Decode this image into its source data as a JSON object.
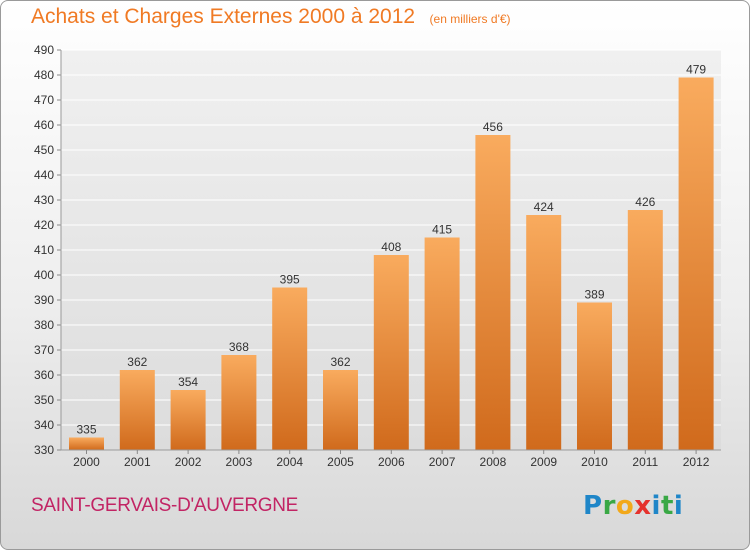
{
  "title": {
    "main": "Achats et Charges Externes 2000 à 2012",
    "unit": "(en milliers d'€)"
  },
  "footer": {
    "town": "SAINT-GERVAIS-D'AUVERGNE",
    "logo": "Proxiti"
  },
  "colors": {
    "title": "#f07a24",
    "town": "#c22464",
    "bar_light": "#f8a85a",
    "bar_dark": "#d5701f",
    "grid": "#ffffff"
  },
  "chart_data": {
    "type": "bar",
    "title": "Achats et Charges Externes 2000 à 2012",
    "subtitle": "(en milliers d'€)",
    "xlabel": "",
    "ylabel": "",
    "categories": [
      "2000",
      "2001",
      "2002",
      "2003",
      "2004",
      "2005",
      "2006",
      "2007",
      "2008",
      "2009",
      "2010",
      "2011",
      "2012"
    ],
    "values": [
      335,
      362,
      354,
      368,
      395,
      362,
      408,
      415,
      456,
      424,
      389,
      426,
      479
    ],
    "value_labels": [
      "335",
      "362",
      "354",
      "368",
      "395",
      "362",
      "408",
      "415",
      "456",
      "424",
      "389",
      "426",
      "479"
    ],
    "ylim": [
      330,
      490
    ],
    "yticks": [
      330,
      340,
      350,
      360,
      370,
      380,
      390,
      400,
      410,
      420,
      430,
      440,
      450,
      460,
      470,
      480,
      490
    ],
    "ytick_labels": [
      "330",
      "340",
      "350",
      "360",
      "370",
      "380",
      "390",
      "400",
      "410",
      "420",
      "430",
      "440",
      "450",
      "460",
      "470",
      "480",
      "490"
    ],
    "grid": true,
    "legend": "none"
  }
}
